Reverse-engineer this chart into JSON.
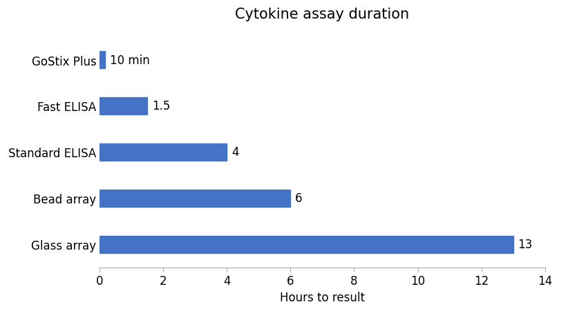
{
  "title": "Cytokine assay duration",
  "xlabel": "Hours to result",
  "categories": [
    "Glass array",
    "Bead array",
    "Standard ELISA",
    "Fast ELISA",
    "GoStix Plus"
  ],
  "values": [
    13,
    6,
    4,
    1.5,
    0.167
  ],
  "labels": [
    "13",
    "6",
    "4",
    "1.5",
    "10 min"
  ],
  "bar_color": "#4472c4",
  "xlim": [
    0,
    14
  ],
  "xticks": [
    0,
    2,
    4,
    6,
    8,
    10,
    12,
    14
  ],
  "title_fontsize": 15,
  "label_fontsize": 12,
  "tick_fontsize": 12,
  "bar_height": 0.38,
  "background_color": "#ffffff",
  "figwidth": 8.48,
  "figheight": 4.52
}
